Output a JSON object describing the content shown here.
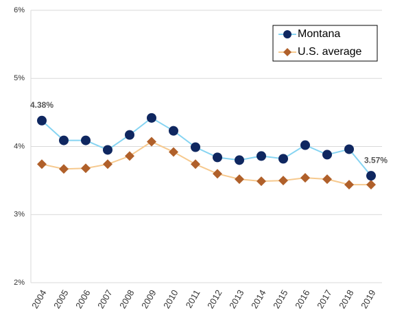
{
  "chart_data": {
    "type": "line",
    "categories": [
      "2004",
      "2005",
      "2006",
      "2007",
      "2008",
      "2009",
      "2010",
      "2011",
      "2012",
      "2013",
      "2014",
      "2015",
      "2016",
      "2017",
      "2018",
      "2019"
    ],
    "series": [
      {
        "name": "Montana",
        "color": "#0f2760",
        "line_color": "#86d4f2",
        "marker": "circle",
        "values": [
          4.38,
          4.09,
          4.09,
          3.95,
          4.17,
          4.42,
          4.23,
          3.99,
          3.84,
          3.8,
          3.86,
          3.82,
          4.02,
          3.88,
          3.96,
          3.57
        ],
        "value_labels": [
          "4.38%",
          null,
          null,
          null,
          null,
          null,
          null,
          null,
          null,
          null,
          null,
          null,
          null,
          null,
          null,
          "3.57%"
        ]
      },
      {
        "name": "U.S. average",
        "color": "#b0602a",
        "line_color": "#f6c98e",
        "marker": "diamond",
        "values": [
          3.74,
          3.67,
          3.68,
          3.74,
          3.86,
          4.07,
          3.92,
          3.74,
          3.6,
          3.52,
          3.49,
          3.5,
          3.54,
          3.52,
          3.44,
          3.44
        ]
      }
    ],
    "ylim": [
      2,
      6
    ],
    "yticks": [
      {
        "value": 2,
        "label": "2%"
      },
      {
        "value": 3,
        "label": "3%"
      },
      {
        "value": 4,
        "label": "4%"
      },
      {
        "value": 5,
        "label": "5%"
      },
      {
        "value": 6,
        "label": "6%"
      }
    ],
    "grid": true,
    "legend": "top-right"
  }
}
